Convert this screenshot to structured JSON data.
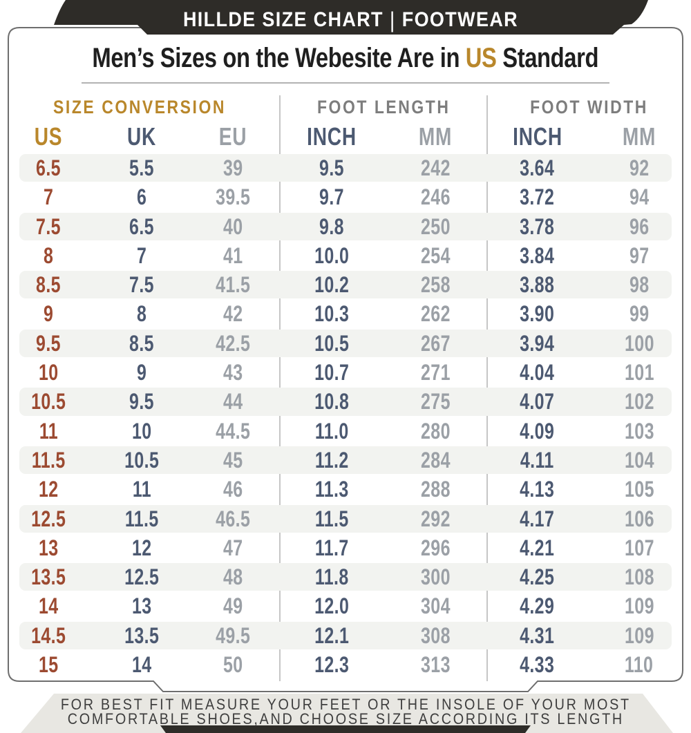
{
  "header": {
    "brand": "HILLDE SIZE CHART",
    "separator": "|",
    "category": "FOOTWEAR"
  },
  "title": {
    "prefix": "Men’s Sizes on the Webesite Are in ",
    "highlight": "US",
    "suffix": " Standard"
  },
  "chart_data": {
    "type": "table",
    "title": "Men’s Sizes on the Webesite Are in US Standard",
    "section_headers": [
      "SIZE CONVERSION",
      "FOOT LENGTH",
      "FOOT WIDTH"
    ],
    "columns": [
      "US",
      "UK",
      "EU",
      "INCH",
      "MM",
      "INCH",
      "MM"
    ],
    "rows": [
      [
        "6.5",
        "5.5",
        "39",
        "9.5",
        "242",
        "3.64",
        "92"
      ],
      [
        "7",
        "6",
        "39.5",
        "9.7",
        "246",
        "3.72",
        "94"
      ],
      [
        "7.5",
        "6.5",
        "40",
        "9.8",
        "250",
        "3.78",
        "96"
      ],
      [
        "8",
        "7",
        "41",
        "10.0",
        "254",
        "3.84",
        "97"
      ],
      [
        "8.5",
        "7.5",
        "41.5",
        "10.2",
        "258",
        "3.88",
        "98"
      ],
      [
        "9",
        "8",
        "42",
        "10.3",
        "262",
        "3.90",
        "99"
      ],
      [
        "9.5",
        "8.5",
        "42.5",
        "10.5",
        "267",
        "3.94",
        "100"
      ],
      [
        "10",
        "9",
        "43",
        "10.7",
        "271",
        "4.04",
        "101"
      ],
      [
        "10.5",
        "9.5",
        "44",
        "10.8",
        "275",
        "4.07",
        "102"
      ],
      [
        "11",
        "10",
        "44.5",
        "11.0",
        "280",
        "4.09",
        "103"
      ],
      [
        "11.5",
        "10.5",
        "45",
        "11.2",
        "284",
        "4.11",
        "104"
      ],
      [
        "12",
        "11",
        "46",
        "11.3",
        "288",
        "4.13",
        "105"
      ],
      [
        "12.5",
        "11.5",
        "46.5",
        "11.5",
        "292",
        "4.17",
        "106"
      ],
      [
        "13",
        "12",
        "47",
        "11.7",
        "296",
        "4.21",
        "107"
      ],
      [
        "13.5",
        "12.5",
        "48",
        "11.8",
        "300",
        "4.25",
        "108"
      ],
      [
        "14",
        "13",
        "49",
        "12.0",
        "304",
        "4.29",
        "109"
      ],
      [
        "14.5",
        "13.5",
        "49.5",
        "12.1",
        "308",
        "4.31",
        "109"
      ],
      [
        "15",
        "14",
        "50",
        "12.3",
        "313",
        "4.33",
        "110"
      ]
    ]
  },
  "footer": {
    "line1": "FOR BEST FIT MEASURE YOUR FEET OR THE INSOLE OF YOUR MOST",
    "line2": "COMFORTABLE SHOES,AND CHOOSE SIZE ACCORDING ITS LENGTH"
  },
  "colors": {
    "accent_gold": "#b9872b",
    "us_red": "#9c4a31",
    "uk_blue": "#4c5971",
    "muted_gray": "#9ba0a6",
    "section_gray": "#7d7d7d",
    "bar_black": "#2e2c28",
    "row_band": "#f2f3f0",
    "footer_bg": "#e8e7e2",
    "ink": "#1f1f1f",
    "card_border": "#6e6e6e"
  }
}
